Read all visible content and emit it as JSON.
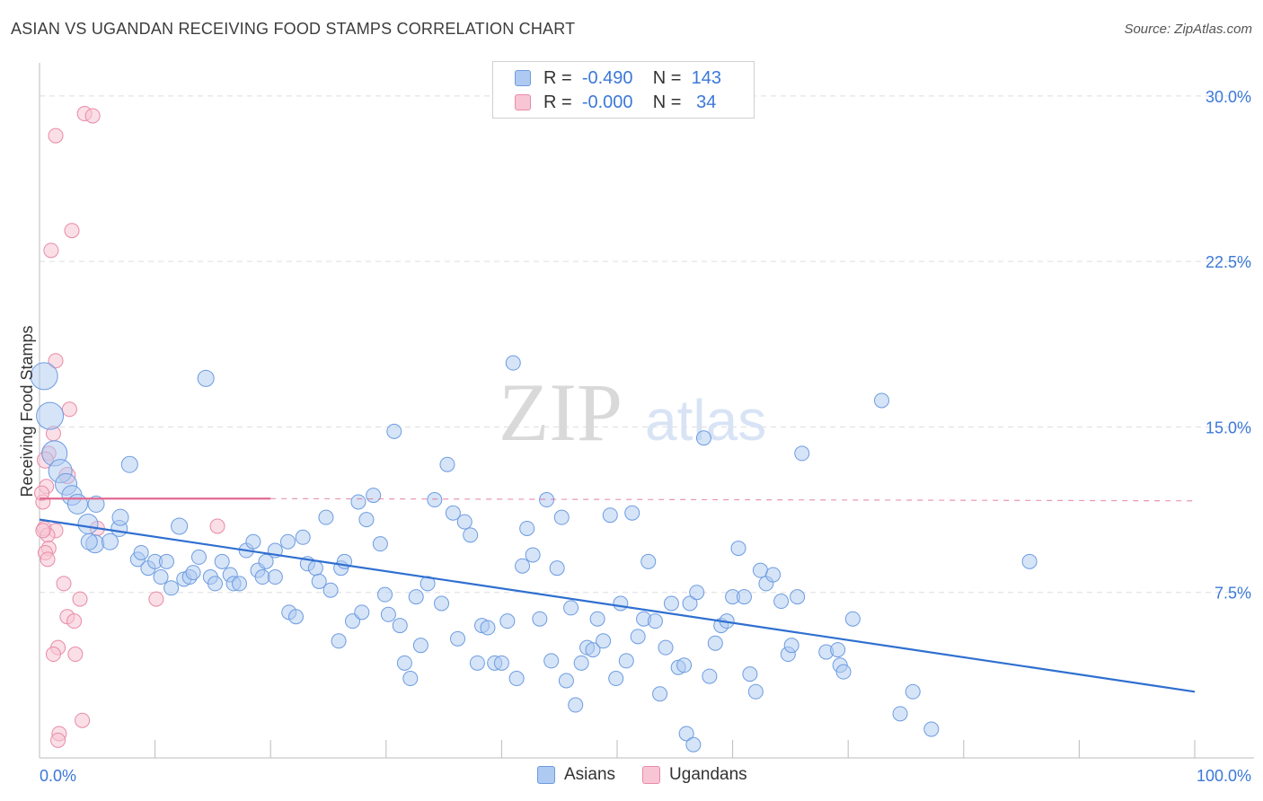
{
  "title": "ASIAN VS UGANDAN RECEIVING FOOD STAMPS CORRELATION CHART",
  "source": "Source: ZipAtlas.com",
  "watermark": {
    "zip": "ZIP",
    "atlas": "atlas"
  },
  "legend": {
    "rows": [
      {
        "r_label": "R =",
        "r_value": "-0.490",
        "n_label": "N =",
        "n_value": "143",
        "color": "#aec9f2",
        "border": "#6d9ce0"
      },
      {
        "r_label": "R =",
        "r_value": "-0.000",
        "n_label": "N =",
        "n_value": " 34",
        "color": "#f8c5d4",
        "border": "#e88aa8"
      }
    ]
  },
  "bottom_legend": {
    "asians": "Asians",
    "ugandans": "Ugandans"
  },
  "chart_data": {
    "type": "scatter",
    "title": "ASIAN VS UGANDAN RECEIVING FOOD STAMPS CORRELATION CHART",
    "xlabel": "",
    "ylabel": "Receiving Food Stamps",
    "xlim": [
      0,
      100
    ],
    "ylim": [
      0,
      31.5
    ],
    "x_tick_labels": [
      "0.0%",
      "100.0%"
    ],
    "y_ticks": [
      7.5,
      15.0,
      22.5,
      30.0
    ],
    "y_tick_labels": [
      "7.5%",
      "15.0%",
      "22.5%",
      "30.0%"
    ],
    "grid": true,
    "colors": {
      "asians": "#6d9ce0",
      "asians_fill": "#aec9f2",
      "ugandans": "#e88aa8",
      "ugandans_fill": "#f8c5d4",
      "asian_trend": "#2f6fd0",
      "ugandan_trend": "#e06a90",
      "axis_text": "#3b78d8"
    },
    "series": [
      {
        "name": "Asians",
        "trend": {
          "x": [
            0,
            100
          ],
          "y": [
            10.8,
            3.0
          ]
        },
        "points": [
          [
            0.4,
            17.3,
            15
          ],
          [
            0.9,
            15.5,
            15
          ],
          [
            1.3,
            13.8,
            14
          ],
          [
            1.8,
            13.0,
            13
          ],
          [
            2.3,
            12.4,
            12
          ],
          [
            2.8,
            11.9,
            11
          ],
          [
            3.3,
            11.5,
            11
          ],
          [
            4.2,
            10.6,
            11
          ],
          [
            4.8,
            9.7,
            10
          ],
          [
            4.3,
            9.8,
            9
          ],
          [
            4.9,
            11.5,
            9
          ],
          [
            6.1,
            9.8,
            9
          ],
          [
            6.9,
            10.4,
            9
          ],
          [
            7.0,
            10.9,
            9
          ],
          [
            7.8,
            13.3,
            9
          ],
          [
            8.5,
            9.0,
            8
          ],
          [
            8.8,
            9.3,
            8
          ],
          [
            9.4,
            8.6,
            8
          ],
          [
            10.0,
            8.9,
            8
          ],
          [
            10.5,
            8.2,
            8
          ],
          [
            11.0,
            8.9,
            8
          ],
          [
            11.4,
            7.7,
            8
          ],
          [
            12.1,
            10.5,
            9
          ],
          [
            12.5,
            8.1,
            8
          ],
          [
            13.0,
            8.2,
            8
          ],
          [
            13.3,
            8.4,
            8
          ],
          [
            13.8,
            9.1,
            8
          ],
          [
            14.4,
            17.2,
            9
          ],
          [
            14.8,
            8.2,
            8
          ],
          [
            15.2,
            7.9,
            8
          ],
          [
            15.8,
            8.9,
            8
          ],
          [
            16.5,
            8.3,
            8
          ],
          [
            16.8,
            7.9,
            8
          ],
          [
            17.3,
            7.9,
            8
          ],
          [
            17.9,
            9.4,
            8
          ],
          [
            18.5,
            9.8,
            8
          ],
          [
            18.9,
            8.5,
            8
          ],
          [
            19.3,
            8.2,
            8
          ],
          [
            19.6,
            8.9,
            8
          ],
          [
            20.4,
            8.2,
            8
          ],
          [
            20.4,
            9.4,
            8
          ],
          [
            21.5,
            9.8,
            8
          ],
          [
            21.6,
            6.6,
            8
          ],
          [
            22.2,
            6.4,
            8
          ],
          [
            22.8,
            10.0,
            8
          ],
          [
            23.2,
            8.8,
            8
          ],
          [
            23.9,
            8.6,
            8
          ],
          [
            24.2,
            8.0,
            8
          ],
          [
            24.8,
            10.9,
            8
          ],
          [
            25.2,
            7.6,
            8
          ],
          [
            25.9,
            5.3,
            8
          ],
          [
            26.1,
            8.6,
            8
          ],
          [
            26.4,
            8.9,
            8
          ],
          [
            27.1,
            6.2,
            8
          ],
          [
            27.6,
            11.6,
            8
          ],
          [
            27.9,
            6.6,
            8
          ],
          [
            28.3,
            10.8,
            8
          ],
          [
            28.9,
            11.9,
            8
          ],
          [
            29.5,
            9.7,
            8
          ],
          [
            29.9,
            7.4,
            8
          ],
          [
            30.2,
            6.5,
            8
          ],
          [
            30.7,
            14.8,
            8
          ],
          [
            31.2,
            6.0,
            8
          ],
          [
            31.6,
            4.3,
            8
          ],
          [
            32.1,
            3.6,
            8
          ],
          [
            32.6,
            7.3,
            8
          ],
          [
            33.0,
            5.1,
            8
          ],
          [
            33.6,
            7.9,
            8
          ],
          [
            34.2,
            11.7,
            8
          ],
          [
            34.8,
            7.0,
            8
          ],
          [
            35.3,
            13.3,
            8
          ],
          [
            35.8,
            11.1,
            8
          ],
          [
            36.2,
            5.4,
            8
          ],
          [
            36.8,
            10.7,
            8
          ],
          [
            37.3,
            10.1,
            8
          ],
          [
            37.9,
            4.3,
            8
          ],
          [
            38.3,
            6.0,
            8
          ],
          [
            38.8,
            5.9,
            8
          ],
          [
            39.4,
            4.3,
            8
          ],
          [
            40.0,
            4.3,
            8
          ],
          [
            40.5,
            6.2,
            8
          ],
          [
            41.0,
            17.9,
            8
          ],
          [
            41.3,
            3.6,
            8
          ],
          [
            41.8,
            8.7,
            8
          ],
          [
            42.2,
            10.4,
            8
          ],
          [
            42.7,
            9.2,
            8
          ],
          [
            43.3,
            6.3,
            8
          ],
          [
            43.9,
            11.7,
            8
          ],
          [
            44.3,
            4.4,
            8
          ],
          [
            44.8,
            8.6,
            8
          ],
          [
            45.2,
            10.9,
            8
          ],
          [
            45.6,
            3.5,
            8
          ],
          [
            46.0,
            6.8,
            8
          ],
          [
            46.4,
            2.4,
            8
          ],
          [
            46.9,
            4.3,
            8
          ],
          [
            47.4,
            5.0,
            8
          ],
          [
            47.9,
            4.9,
            8
          ],
          [
            48.3,
            6.3,
            8
          ],
          [
            48.8,
            5.3,
            8
          ],
          [
            49.4,
            11.0,
            8
          ],
          [
            49.9,
            3.6,
            8
          ],
          [
            50.3,
            7.0,
            8
          ],
          [
            50.8,
            4.4,
            8
          ],
          [
            51.3,
            11.1,
            8
          ],
          [
            51.8,
            5.5,
            8
          ],
          [
            52.3,
            6.3,
            8
          ],
          [
            52.7,
            8.9,
            8
          ],
          [
            53.3,
            6.2,
            8
          ],
          [
            53.7,
            2.9,
            8
          ],
          [
            54.2,
            5.0,
            8
          ],
          [
            54.7,
            7.0,
            8
          ],
          [
            55.3,
            4.1,
            8
          ],
          [
            55.8,
            4.2,
            8
          ],
          [
            56.3,
            7.0,
            8
          ],
          [
            56.9,
            7.5,
            8
          ],
          [
            57.5,
            14.5,
            8
          ],
          [
            58.0,
            3.7,
            8
          ],
          [
            58.5,
            5.2,
            8
          ],
          [
            59.0,
            6.0,
            8
          ],
          [
            59.5,
            6.2,
            8
          ],
          [
            60.0,
            7.3,
            8
          ],
          [
            60.5,
            9.5,
            8
          ],
          [
            61.0,
            7.3,
            8
          ],
          [
            61.5,
            3.8,
            8
          ],
          [
            62.0,
            3.0,
            8
          ],
          [
            62.4,
            8.5,
            8
          ],
          [
            62.9,
            7.9,
            8
          ],
          [
            63.5,
            8.3,
            8
          ],
          [
            64.2,
            7.1,
            8
          ],
          [
            64.8,
            4.7,
            8
          ],
          [
            65.1,
            5.1,
            8
          ],
          [
            65.6,
            7.3,
            8
          ],
          [
            66.0,
            13.8,
            8
          ],
          [
            68.1,
            4.8,
            8
          ],
          [
            69.1,
            4.9,
            8
          ],
          [
            69.3,
            4.2,
            8
          ],
          [
            69.6,
            3.9,
            8
          ],
          [
            70.4,
            6.3,
            8
          ],
          [
            72.9,
            16.2,
            8
          ],
          [
            75.6,
            3.0,
            8
          ],
          [
            74.5,
            2.0,
            8
          ],
          [
            77.2,
            1.3,
            8
          ],
          [
            85.7,
            8.9,
            8
          ],
          [
            56.0,
            1.1,
            8
          ],
          [
            56.6,
            0.6,
            8
          ]
        ]
      },
      {
        "name": "Ugandans",
        "trend": {
          "x": [
            0,
            20
          ],
          "y": [
            11.75,
            11.75
          ]
        },
        "trend_dashed": {
          "x": [
            20,
            100
          ],
          "y": [
            11.75,
            11.65
          ]
        },
        "points": [
          [
            3.9,
            29.2,
            8
          ],
          [
            4.6,
            29.1,
            8
          ],
          [
            1.4,
            28.2,
            8
          ],
          [
            2.8,
            23.9,
            8
          ],
          [
            1.0,
            23.0,
            8
          ],
          [
            1.4,
            18.0,
            8
          ],
          [
            2.6,
            15.8,
            8
          ],
          [
            1.2,
            14.7,
            8
          ],
          [
            0.8,
            13.8,
            8
          ],
          [
            0.5,
            13.5,
            9
          ],
          [
            2.4,
            12.8,
            9
          ],
          [
            0.6,
            12.3,
            8
          ],
          [
            0.3,
            11.6,
            8
          ],
          [
            0.4,
            10.4,
            8
          ],
          [
            1.4,
            10.3,
            8
          ],
          [
            0.7,
            10.1,
            8
          ],
          [
            5.0,
            10.4,
            8
          ],
          [
            15.4,
            10.5,
            8
          ],
          [
            0.8,
            9.5,
            8
          ],
          [
            0.5,
            9.3,
            8
          ],
          [
            0.7,
            9.0,
            8
          ],
          [
            2.1,
            7.9,
            8
          ],
          [
            3.5,
            7.2,
            8
          ],
          [
            10.1,
            7.2,
            8
          ],
          [
            2.4,
            6.4,
            8
          ],
          [
            3.0,
            6.2,
            8
          ],
          [
            1.6,
            5.0,
            8
          ],
          [
            1.2,
            4.7,
            8
          ],
          [
            3.1,
            4.7,
            8
          ],
          [
            3.7,
            1.7,
            8
          ],
          [
            1.7,
            1.1,
            8
          ],
          [
            1.6,
            0.8,
            8
          ],
          [
            0.3,
            10.3,
            8
          ],
          [
            0.2,
            12.0,
            8
          ]
        ]
      }
    ]
  }
}
